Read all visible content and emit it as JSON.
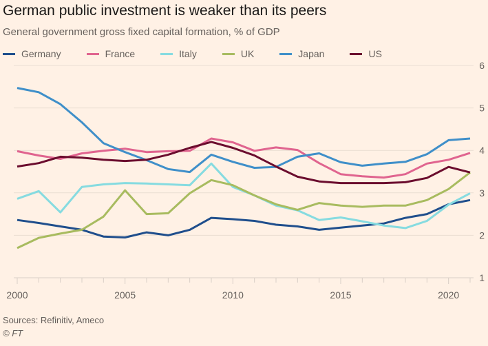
{
  "chart_data": {
    "type": "line",
    "title": "German public investment is weaker than its peers",
    "subtitle": "General government gross fixed capital formation, % of GDP",
    "x": [
      2000,
      2001,
      2002,
      2003,
      2004,
      2005,
      2006,
      2007,
      2008,
      2009,
      2010,
      2011,
      2012,
      2013,
      2014,
      2015,
      2016,
      2017,
      2018,
      2019,
      2020,
      2021
    ],
    "xticks": [
      "2000",
      "2005",
      "2010",
      "2015",
      "2020"
    ],
    "yticks": [
      "1",
      "2",
      "3",
      "4",
      "5",
      "6"
    ],
    "xlim": [
      2000,
      2021
    ],
    "ylim": [
      1,
      6
    ],
    "grid": "horizontal",
    "legend": "top-left",
    "series": [
      {
        "name": "Germany",
        "color": "#1f4e8c",
        "values": [
          2.36,
          2.29,
          2.21,
          2.13,
          1.97,
          1.95,
          2.07,
          2.0,
          2.13,
          2.41,
          2.38,
          2.34,
          2.25,
          2.21,
          2.13,
          2.18,
          2.23,
          2.28,
          2.41,
          2.5,
          2.73,
          2.83
        ]
      },
      {
        "name": "France",
        "color": "#e0648f",
        "values": [
          3.98,
          3.88,
          3.8,
          3.93,
          3.99,
          4.04,
          3.96,
          3.98,
          3.99,
          4.28,
          4.19,
          3.99,
          4.07,
          4.01,
          3.7,
          3.44,
          3.39,
          3.36,
          3.44,
          3.69,
          3.78,
          3.94
        ]
      },
      {
        "name": "Italy",
        "color": "#86dbe0",
        "values": [
          2.86,
          3.04,
          2.54,
          3.14,
          3.2,
          3.23,
          3.22,
          3.2,
          3.18,
          3.69,
          3.14,
          2.94,
          2.7,
          2.59,
          2.36,
          2.42,
          2.33,
          2.23,
          2.17,
          2.34,
          2.72,
          2.99
        ]
      },
      {
        "name": "UK",
        "color": "#a8bb5f",
        "values": [
          1.7,
          1.94,
          2.04,
          2.13,
          2.44,
          3.06,
          2.5,
          2.52,
          2.99,
          3.3,
          3.18,
          2.94,
          2.73,
          2.6,
          2.76,
          2.7,
          2.67,
          2.7,
          2.7,
          2.83,
          3.09,
          3.48
        ]
      },
      {
        "name": "Japan",
        "color": "#3f8fc9",
        "values": [
          5.47,
          5.37,
          5.09,
          4.66,
          4.17,
          3.96,
          3.77,
          3.56,
          3.49,
          3.9,
          3.73,
          3.59,
          3.61,
          3.85,
          3.93,
          3.72,
          3.64,
          3.69,
          3.73,
          3.91,
          4.24,
          4.28
        ]
      },
      {
        "name": "US",
        "color": "#6b0d2e",
        "values": [
          3.62,
          3.7,
          3.85,
          3.83,
          3.78,
          3.75,
          3.78,
          3.9,
          4.06,
          4.2,
          4.06,
          3.88,
          3.62,
          3.38,
          3.27,
          3.23,
          3.23,
          3.23,
          3.25,
          3.35,
          3.61,
          3.48
        ]
      }
    ]
  },
  "footer": {
    "sources": "Sources: Refinitiv, Ameco",
    "credit": "© FT"
  }
}
